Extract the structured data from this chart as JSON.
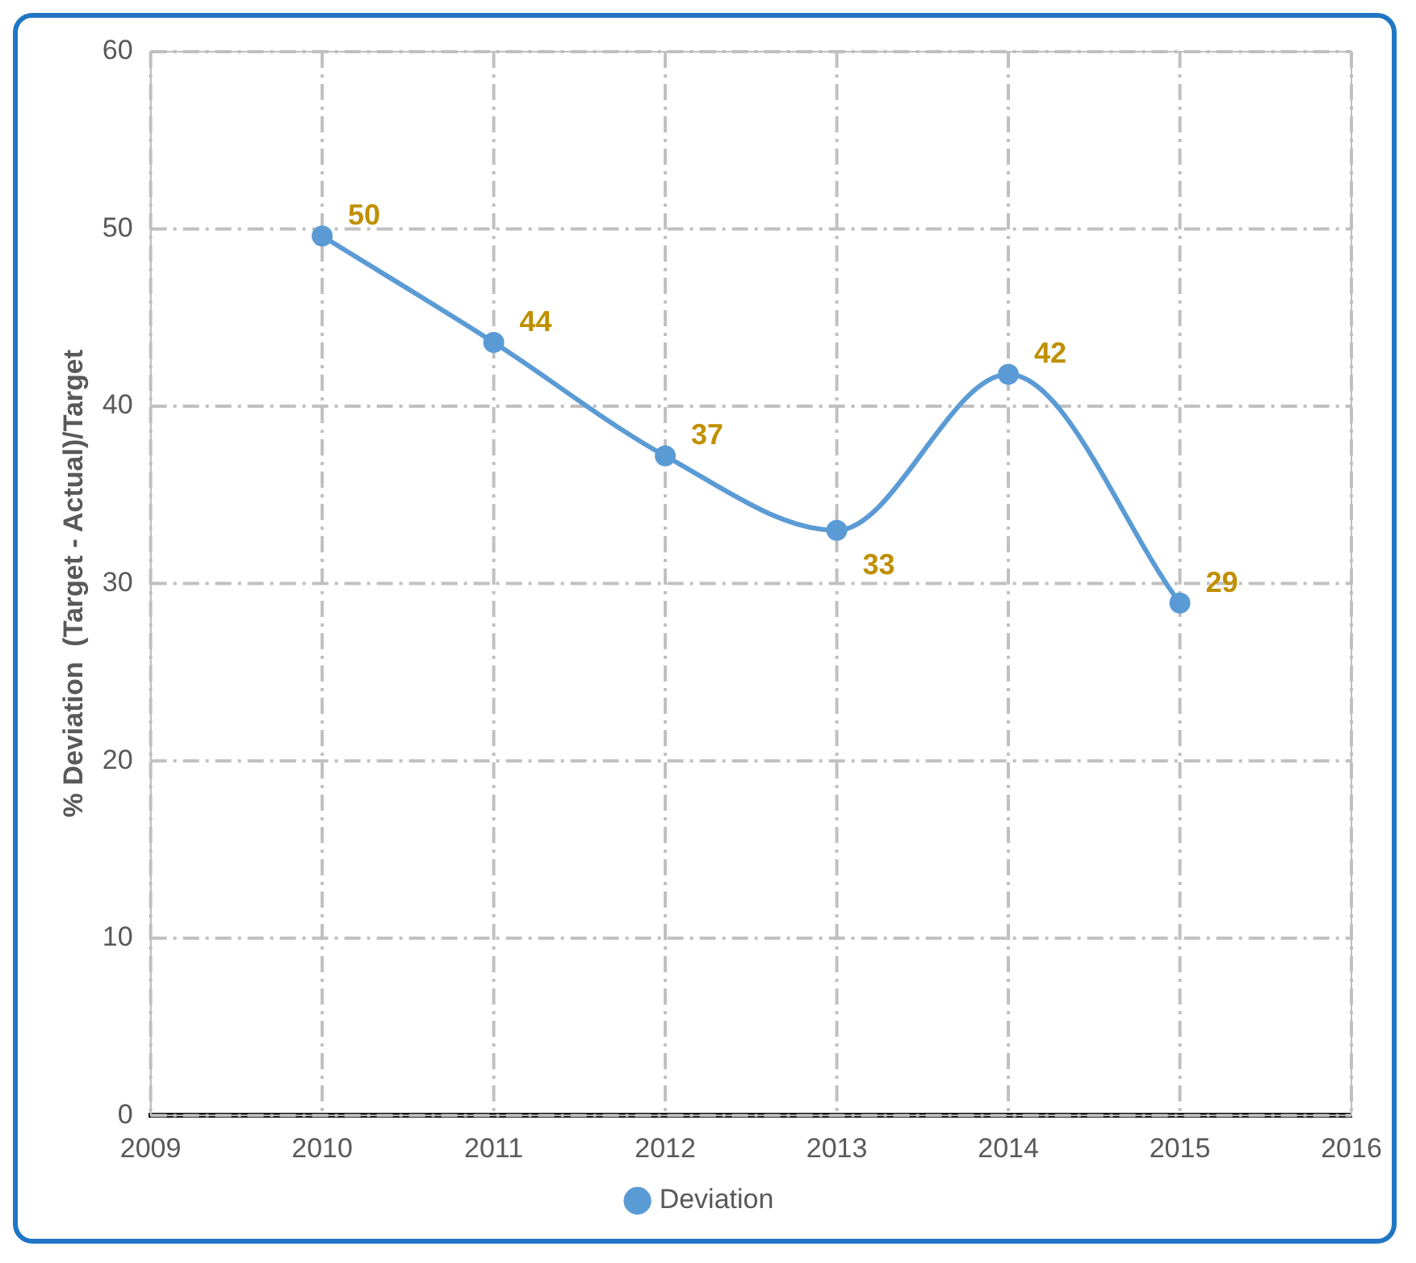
{
  "chart_data": {
    "type": "line",
    "ylabel": "% Deviation  (Target - Actual)/Target",
    "x": [
      2010,
      2011,
      2012,
      2013,
      2014,
      2015
    ],
    "series": [
      {
        "name": "Deviation",
        "color": "#5b9bd5",
        "values": [
          49.6,
          43.6,
          37.2,
          33.0,
          41.8,
          28.9
        ],
        "value_labels": [
          "50",
          "44",
          "37",
          "33",
          "42",
          "29"
        ]
      }
    ],
    "xlim": [
      2009,
      2016
    ],
    "xticks": [
      2009,
      2010,
      2011,
      2012,
      2013,
      2014,
      2015,
      2016
    ],
    "ylim": [
      0,
      60
    ],
    "yticks": [
      0,
      10,
      20,
      30,
      40,
      50,
      60
    ],
    "grid": true,
    "legend": "bottom",
    "marker": "circle",
    "line_style": "solid"
  }
}
